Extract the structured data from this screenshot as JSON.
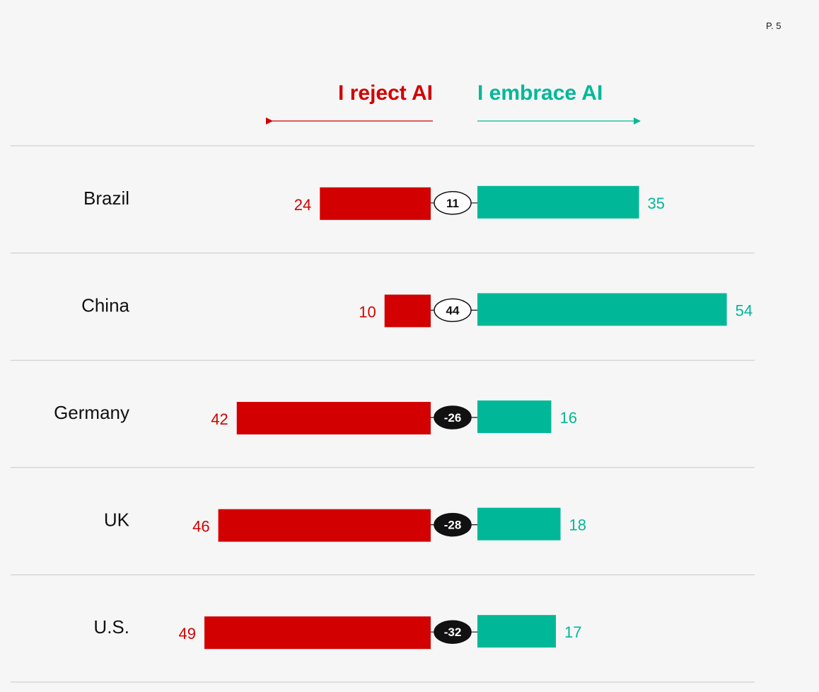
{
  "page": {
    "number_label": "P. 5"
  },
  "colors": {
    "reject": "#d20000",
    "embrace": "#00b898",
    "divider": "#c8c8c8",
    "positive_net_fill": "#ffffff",
    "negative_net_fill": "#111111"
  },
  "chart_data": {
    "type": "bar",
    "orientation": "horizontal-diverging",
    "headers": {
      "reject": "I reject AI",
      "embrace": "I embrace AI"
    },
    "categories": [
      "Brazil",
      "China",
      "Germany",
      "UK",
      "U.S."
    ],
    "series": [
      {
        "name": "I reject AI",
        "values": [
          24,
          10,
          42,
          46,
          49
        ]
      },
      {
        "name": "I embrace AI",
        "values": [
          35,
          54,
          16,
          18,
          17
        ]
      }
    ],
    "net": [
      11,
      44,
      -26,
      -28,
      -32
    ],
    "xlim": [
      0,
      54
    ],
    "grid": false,
    "legend": "top"
  }
}
